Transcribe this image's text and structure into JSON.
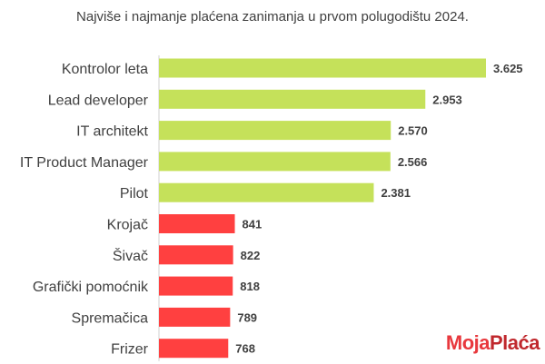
{
  "chart_data": {
    "type": "bar",
    "orientation": "horizontal",
    "title": "Najviše i najmanje plaćena zanimanja u prvom polugodištu 2024.",
    "categories": [
      "Kontrolor leta",
      "Lead developer",
      "IT architekt",
      "IT Product Manager",
      "Pilot",
      "Krojač",
      "Šivač",
      "Grafički pomoćnik",
      "Spremačica",
      "Frizer"
    ],
    "values": [
      3625,
      2953,
      2570,
      2566,
      2381,
      841,
      822,
      818,
      789,
      768
    ],
    "value_labels": [
      "3.625",
      "2.953",
      "2.570",
      "2.566",
      "2.381",
      "841",
      "822",
      "818",
      "789",
      "768"
    ],
    "bar_colors": [
      "#c5e15a",
      "#c5e15a",
      "#c5e15a",
      "#c5e15a",
      "#c5e15a",
      "#ff4040",
      "#ff4040",
      "#ff4040",
      "#ff4040",
      "#ff4040"
    ],
    "xlim": [
      0,
      3625
    ],
    "grid": false,
    "legend": "none"
  },
  "logo": {
    "part_a": "Moja",
    "part_b": "Plaća"
  }
}
